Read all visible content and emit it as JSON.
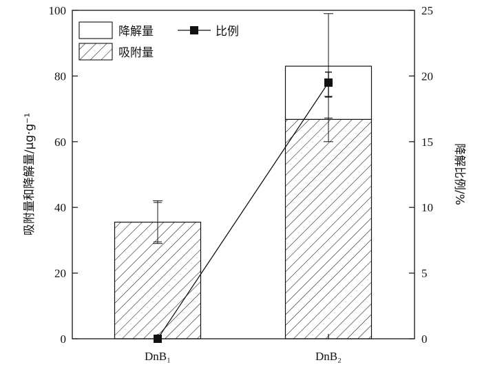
{
  "chart_data": {
    "type": "bar",
    "stacked": true,
    "categories": [
      "DnB₁",
      "DnB₂"
    ],
    "series": [
      {
        "name": "吸附量",
        "values": [
          35.5,
          66.8
        ],
        "fill": "hatch"
      },
      {
        "name": "降解量",
        "values": [
          0.0,
          16.2
        ],
        "fill": "white"
      }
    ],
    "error_bars_left": [
      {
        "center": 35.5,
        "low": 29.0,
        "high": 42.0
      },
      {
        "center": 78.0,
        "low": 60.0,
        "high": 99.0
      }
    ],
    "error_bars_left_inner": [
      {
        "low": 29.5,
        "high": 41.5
      },
      {
        "low": 67.2,
        "high": 73.8
      }
    ],
    "line_series": {
      "name": "比例",
      "axis": "right",
      "values": [
        0.0,
        19.5
      ]
    },
    "line_errors_right": [
      {
        "low": 18.4,
        "high": 20.3
      }
    ],
    "ylabel": "吸附量和降解量/μg·g⁻¹",
    "y2label": "降解比例/%",
    "ylim": [
      0,
      100
    ],
    "y2lim": [
      0,
      25
    ],
    "yticks": [
      0,
      20,
      40,
      60,
      80,
      100
    ],
    "y2ticks": [
      0,
      5,
      10,
      15,
      20,
      25
    ],
    "legend": {
      "placement": "top-left",
      "entries": [
        "降解量",
        "吸附量",
        "比例"
      ]
    },
    "colors": {
      "line": "#111111",
      "stroke": "#111111",
      "background": "#ffffff"
    }
  }
}
